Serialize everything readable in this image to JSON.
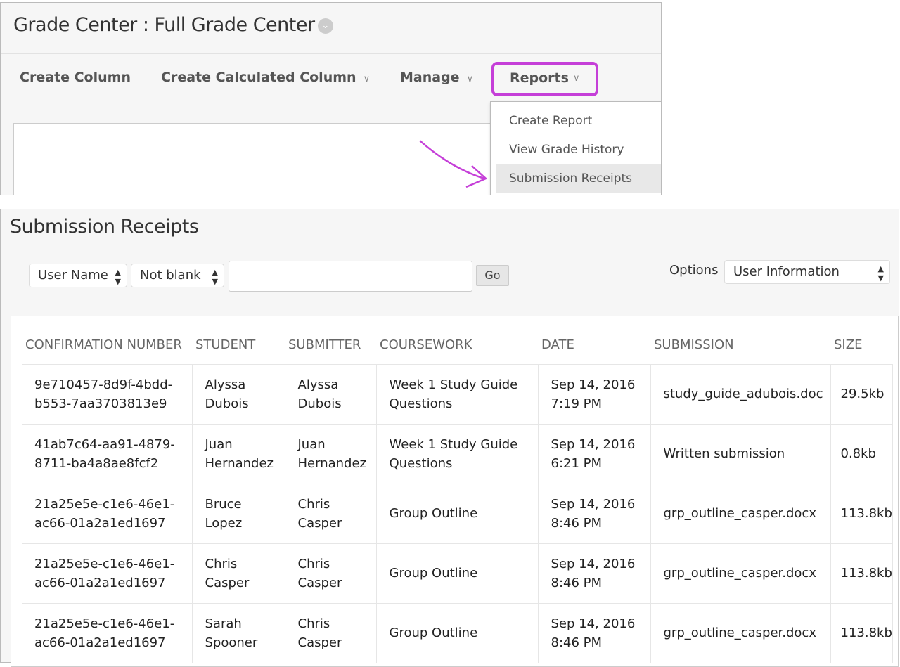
{
  "grade_center": {
    "title": "Grade Center : Full Grade Center",
    "toolbar": {
      "create_column": "Create Column",
      "create_calculated_column": "Create Calculated Column",
      "manage": "Manage",
      "reports": "Reports"
    },
    "reports_menu": [
      "Create Report",
      "View Grade History",
      "Submission Receipts"
    ],
    "highlight_color": "#c53fd8"
  },
  "receipts": {
    "title": "Submission Receipts",
    "filter_field": "User Name",
    "filter_op": "Not blank",
    "search_value": "",
    "go": "Go",
    "options_label": "Options",
    "options_value": "User Information",
    "columns": [
      "CONFIRMATION NUMBER",
      "STUDENT",
      "SUBMITTER",
      "COURSEWORK",
      "DATE",
      "SUBMISSION",
      "SIZE"
    ],
    "rows": [
      {
        "conf": [
          "9e710457-8d9f-4bdd-",
          "b553-7aa3703813e9"
        ],
        "student": [
          "Alyssa",
          "Dubois"
        ],
        "submitter": [
          "Alyssa",
          "Dubois"
        ],
        "coursework": [
          "Week 1 Study Guide",
          "Questions"
        ],
        "date": [
          "Sep 14, 2016",
          "7:19 PM"
        ],
        "submission": "study_guide_adubois.doc",
        "size": "29.5kb"
      },
      {
        "conf": [
          "41ab7c64-aa91-4879-",
          "8711-ba4a8ae8fcf2"
        ],
        "student": [
          "Juan",
          "Hernandez"
        ],
        "submitter": [
          "Juan",
          "Hernandez"
        ],
        "coursework": [
          "Week 1 Study Guide",
          "Questions"
        ],
        "date": [
          "Sep 14, 2016",
          "6:21 PM"
        ],
        "submission": "Written submission",
        "size": "0.8kb"
      },
      {
        "conf": [
          "21a25e5e-c1e6-46e1-",
          "ac66-01a2a1ed1697"
        ],
        "student": [
          "Bruce",
          "Lopez"
        ],
        "submitter": [
          "Chris",
          "Casper"
        ],
        "coursework": [
          "Group Outline",
          ""
        ],
        "date": [
          "Sep 14, 2016",
          "8:46 PM"
        ],
        "submission": "grp_outline_casper.docx",
        "size": "113.8kb"
      },
      {
        "conf": [
          "21a25e5e-c1e6-46e1-",
          "ac66-01a2a1ed1697"
        ],
        "student": [
          "Chris",
          "Casper"
        ],
        "submitter": [
          "Chris",
          "Casper"
        ],
        "coursework": [
          "Group Outline",
          ""
        ],
        "date": [
          "Sep 14, 2016",
          "8:46 PM"
        ],
        "submission": "grp_outline_casper.docx",
        "size": "113.8kb"
      },
      {
        "conf": [
          "21a25e5e-c1e6-46e1-",
          "ac66-01a2a1ed1697"
        ],
        "student": [
          "Sarah",
          "Spooner"
        ],
        "submitter": [
          "Chris",
          "Casper"
        ],
        "coursework": [
          "Group Outline",
          ""
        ],
        "date": [
          "Sep 14, 2016",
          "8:46 PM"
        ],
        "submission": "grp_outline_casper.docx",
        "size": "113.8kb"
      }
    ]
  }
}
